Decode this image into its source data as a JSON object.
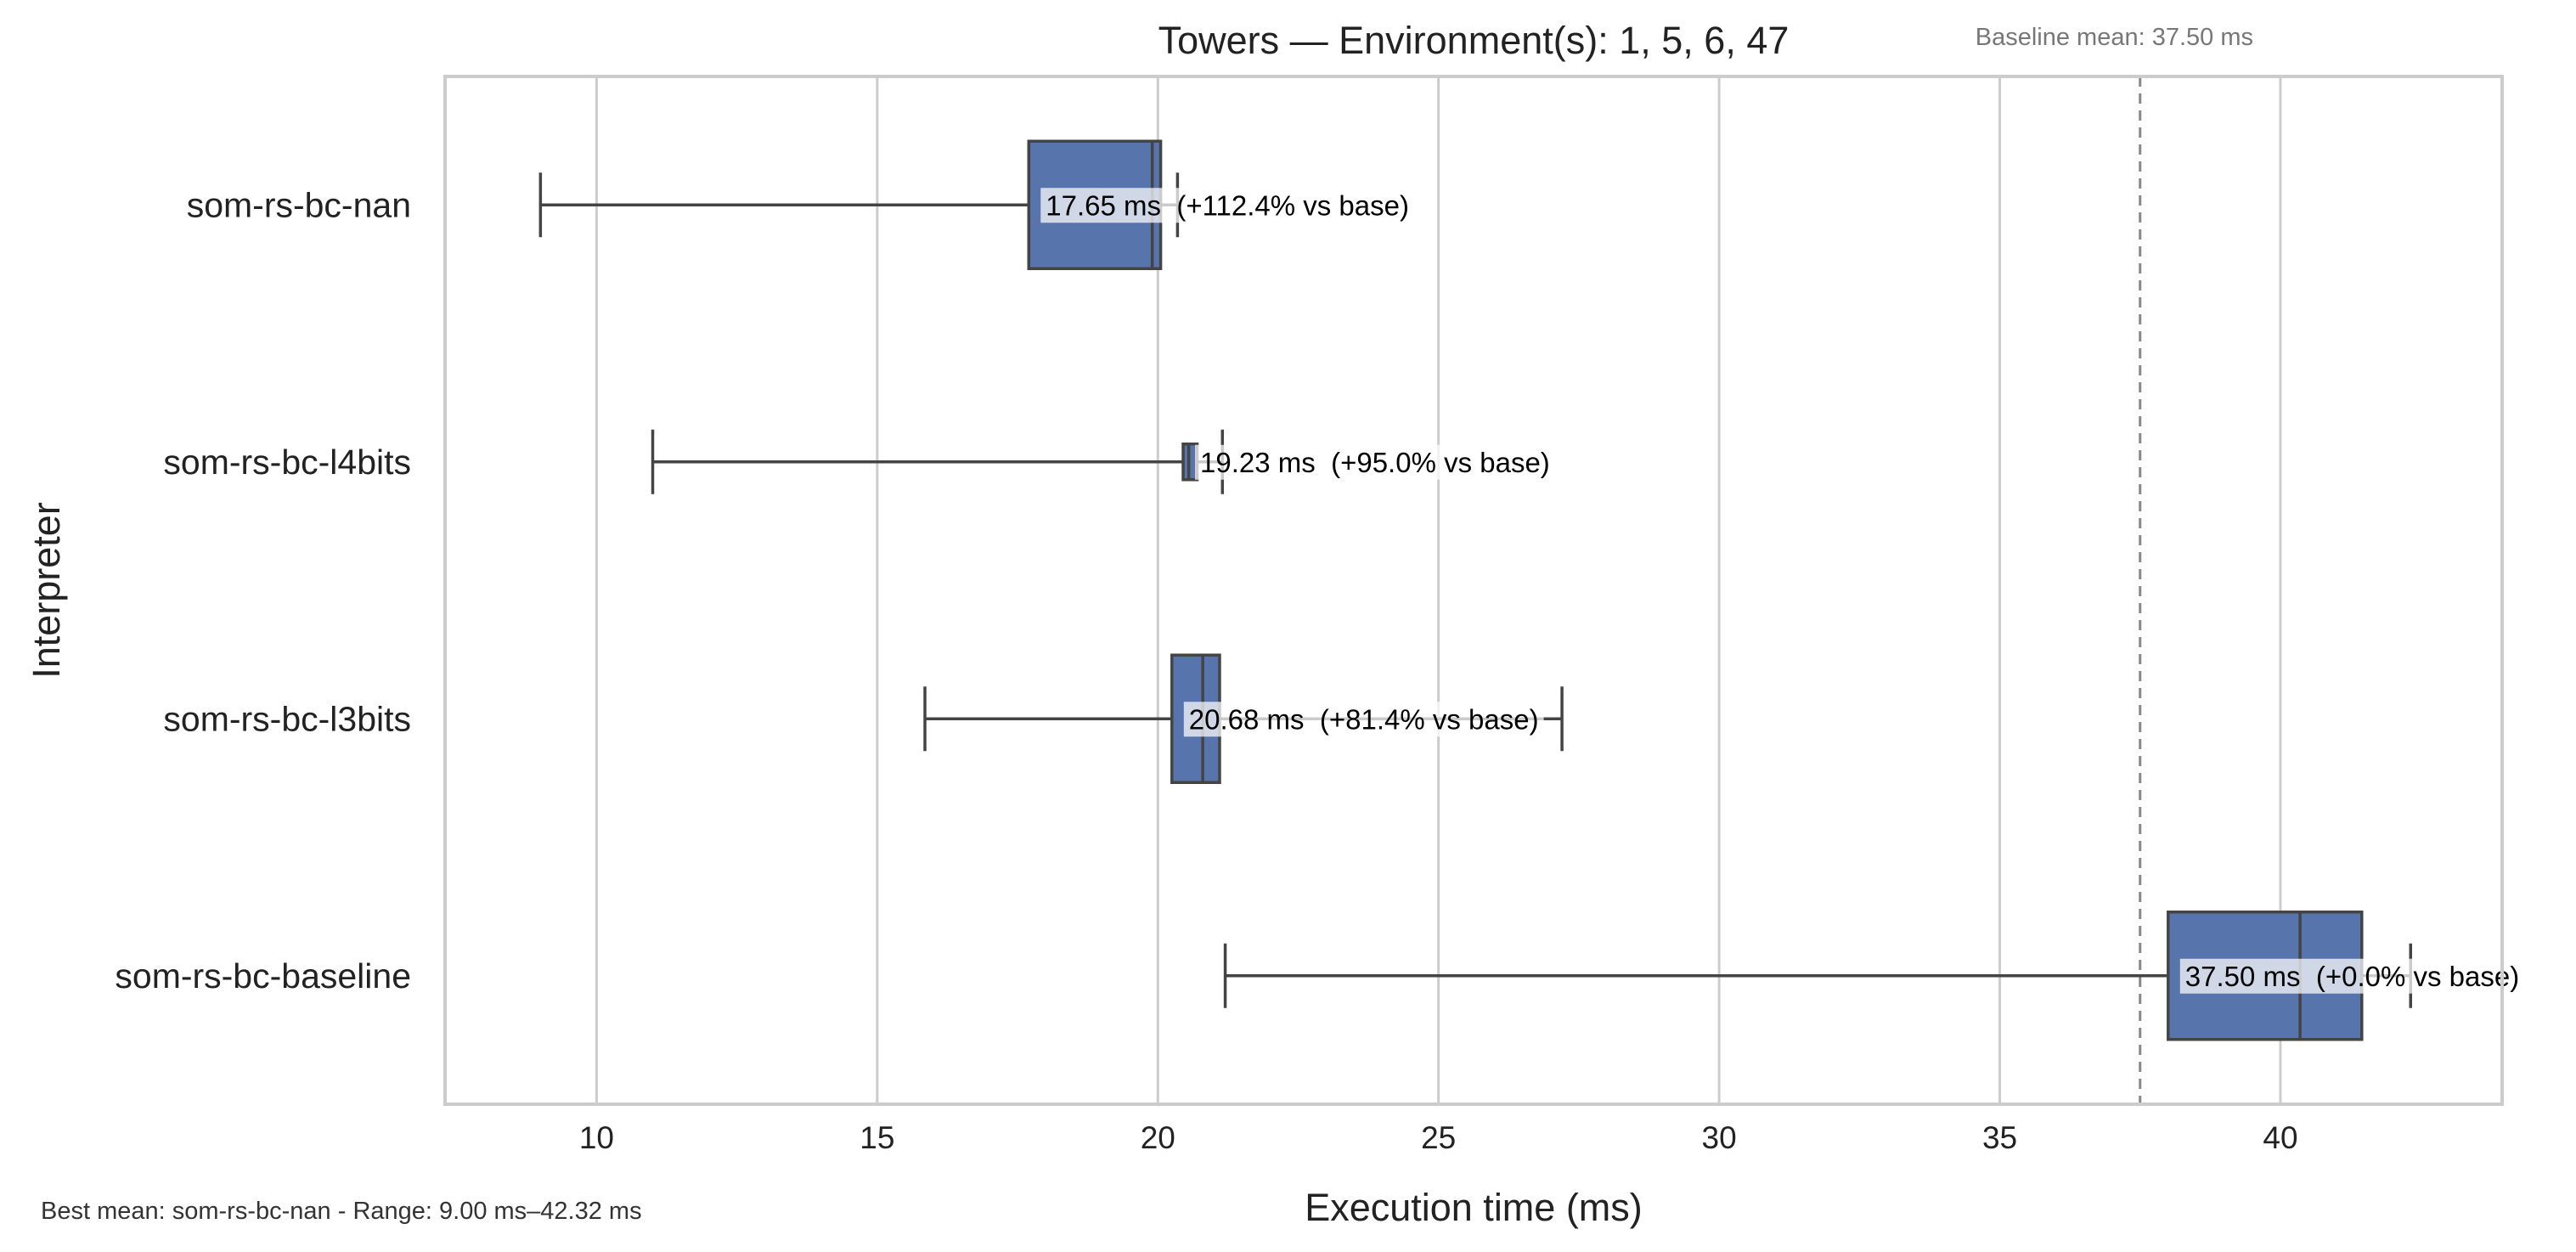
{
  "chart_data": {
    "type": "box",
    "orientation": "horizontal",
    "title": "Towers — Environment(s): 1, 5, 6, 47",
    "xlabel": "Execution time (ms)",
    "ylabel": "Interpreter",
    "xlim": [
      7.3,
      43.95
    ],
    "xticks": [
      10,
      15,
      20,
      25,
      30,
      35,
      40
    ],
    "grid": "vertical",
    "box_color": "#5874ac",
    "line_color": "#444444",
    "baseline": {
      "value": 37.5,
      "label": "Baseline mean: 37.50 ms"
    },
    "categories": [
      "som-rs-bc-nan",
      "som-rs-bc-l4bits",
      "som-rs-bc-l3bits",
      "som-rs-bc-baseline"
    ],
    "boxes": [
      {
        "name": "som-rs-bc-nan",
        "whisker_low": 9.0,
        "q1": 17.7,
        "median": 19.9,
        "q3": 20.05,
        "whisker_high": 20.35,
        "annotation": "17.65 ms  (+112.4% vs base)"
      },
      {
        "name": "som-rs-bc-l4bits",
        "whisker_low": 11.0,
        "q1": 20.45,
        "median": 20.55,
        "q3": 20.7,
        "whisker_high": 21.15,
        "annotation": "19.23 ms  (+95.0% vs base)"
      },
      {
        "name": "som-rs-bc-l3bits",
        "whisker_low": 15.85,
        "q1": 20.25,
        "median": 20.8,
        "q3": 21.1,
        "whisker_high": 27.2,
        "annotation": "20.68 ms  (+81.4% vs base)"
      },
      {
        "name": "som-rs-bc-baseline",
        "whisker_low": 21.2,
        "q1": 38.0,
        "median": 40.35,
        "q3": 41.45,
        "whisker_high": 42.32,
        "annotation": "37.50 ms  (+0.0% vs base)"
      }
    ]
  },
  "footer": "Best mean: som-rs-bc-nan - Range: 9.00 ms–42.32 ms"
}
